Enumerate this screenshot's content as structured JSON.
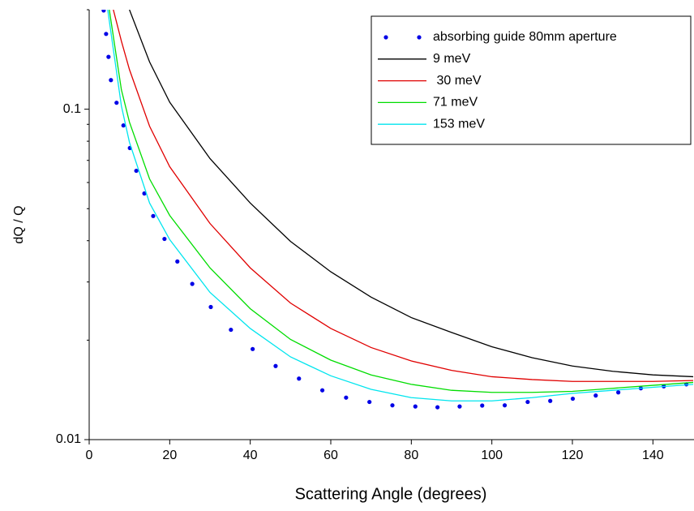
{
  "chart_data": {
    "type": "line",
    "log_y": true,
    "x_label": "Scattering Angle (degrees)",
    "y_label": "dQ / Q",
    "xlim": [
      0,
      150
    ],
    "xticks": [
      0,
      20,
      40,
      60,
      80,
      100,
      120,
      140
    ],
    "ylim": [
      0.01,
      0.2
    ],
    "yticks": [
      0.01,
      0.1
    ],
    "yminor_ticks": [
      0.02,
      0.03,
      0.04,
      0.05,
      0.06,
      0.07,
      0.08,
      0.09,
      0.2
    ],
    "legend": "top-right",
    "series": [
      {
        "name": "absorbing guide 80mm aperture",
        "color": "#0000e6",
        "style": "dots",
        "x": [
          3.6,
          4.2,
          4.8,
          5.4,
          6.8,
          8.5,
          10.1,
          11.7,
          13.7,
          15.9,
          18.7,
          21.9,
          25.6,
          30.2,
          35.2,
          40.6,
          46.3,
          52.1,
          57.9,
          63.8,
          69.6,
          75.3,
          81.0,
          86.5,
          92.0,
          97.6,
          103.2,
          108.9,
          114.5,
          120.1,
          125.8,
          131.4,
          137.0,
          142.7,
          148.3
        ],
        "values": [
          0.199,
          0.169,
          0.144,
          0.1225,
          0.1046,
          0.0893,
          0.0763,
          0.0651,
          0.0556,
          0.0475,
          0.0405,
          0.0346,
          0.0296,
          0.0252,
          0.0215,
          0.0188,
          0.0167,
          0.0153,
          0.0141,
          0.0134,
          0.013,
          0.0127,
          0.0126,
          0.01253,
          0.0126,
          0.01268,
          0.0127,
          0.013,
          0.0131,
          0.0133,
          0.0136,
          0.0139,
          0.0143,
          0.0145,
          0.0147
        ]
      },
      {
        "name": "9 meV",
        "color": "#000000",
        "style": "line",
        "x": [
          10,
          15,
          20,
          30,
          40,
          50,
          60,
          70,
          80,
          90,
          100,
          110,
          120,
          130,
          140,
          150
        ],
        "values": [
          0.2,
          0.139,
          0.105,
          0.0709,
          0.052,
          0.0398,
          0.0322,
          0.027,
          0.0234,
          0.0211,
          0.0191,
          0.0177,
          0.0167,
          0.0161,
          0.0157,
          0.0155
        ]
      },
      {
        "name": " 30 meV",
        "color": "#e00000",
        "style": "line",
        "x": [
          6,
          8,
          10,
          15,
          20,
          30,
          40,
          50,
          60,
          70,
          80,
          90,
          100,
          110,
          120,
          130,
          140,
          150
        ],
        "values": [
          0.2,
          0.1607,
          0.1318,
          0.0888,
          0.067,
          0.0451,
          0.0331,
          0.0259,
          0.0217,
          0.019,
          0.0173,
          0.0162,
          0.0155,
          0.0152,
          0.015,
          0.015,
          0.015,
          0.0151
        ]
      },
      {
        "name": "71 meV",
        "color": "#00dd00",
        "style": "line",
        "x": [
          5,
          8,
          10,
          15,
          20,
          30,
          40,
          50,
          60,
          70,
          80,
          90,
          100,
          110,
          120,
          130,
          140,
          150
        ],
        "values": [
          0.2,
          0.1145,
          0.0914,
          0.0615,
          0.0477,
          0.0331,
          0.0249,
          0.0201,
          0.0174,
          0.0157,
          0.0147,
          0.0141,
          0.0139,
          0.0139,
          0.014,
          0.0143,
          0.0146,
          0.0149
        ]
      },
      {
        "name": "153 meV",
        "color": "#00e5ee",
        "style": "line",
        "x": [
          4.6,
          8,
          10,
          15,
          20,
          30,
          40,
          50,
          60,
          70,
          80,
          90,
          100,
          110,
          120,
          130,
          140,
          150
        ],
        "values": [
          0.2,
          0.1023,
          0.0794,
          0.052,
          0.0403,
          0.0279,
          0.0217,
          0.0178,
          0.0156,
          0.0142,
          0.0134,
          0.0131,
          0.0131,
          0.0134,
          0.0138,
          0.0141,
          0.0144,
          0.0147
        ]
      }
    ]
  }
}
